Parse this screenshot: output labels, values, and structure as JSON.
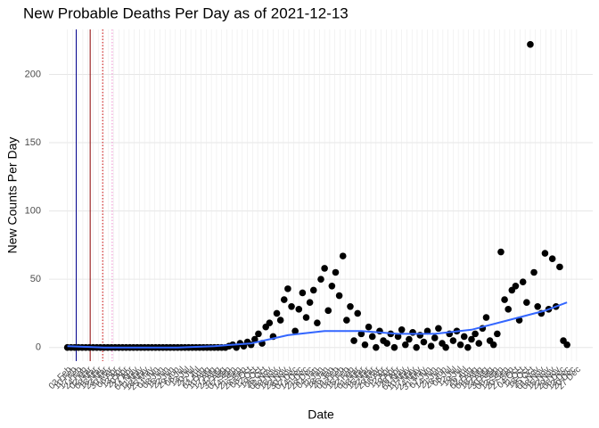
{
  "chart_data": {
    "type": "scatter",
    "title": "New Probable Deaths Per Day as of 2021-12-13",
    "x_label": "Date",
    "y_label": "New Counts Per Day",
    "color": "#000000",
    "x": [
      0,
      5,
      10,
      15,
      20,
      25,
      30,
      35,
      40,
      45,
      50,
      55,
      60,
      65,
      70,
      75,
      80,
      85,
      90,
      95,
      100,
      105,
      110,
      115,
      120,
      125,
      130,
      135,
      140,
      145,
      150,
      155,
      160,
      165,
      170,
      175,
      180,
      185,
      190,
      195,
      200,
      205,
      210,
      215,
      220,
      225,
      230,
      235,
      240,
      245,
      250,
      255,
      260,
      265,
      270,
      275,
      280,
      285,
      290,
      295,
      300,
      305,
      310,
      315,
      320,
      325,
      330,
      335,
      340,
      345,
      350,
      355,
      360,
      365,
      370,
      375,
      380,
      385,
      390,
      395,
      400,
      405,
      410,
      415,
      420,
      425,
      430,
      435,
      440,
      445,
      450,
      455,
      460,
      465,
      470,
      475,
      480,
      485,
      490,
      495,
      500,
      505,
      510,
      515,
      520,
      525,
      530,
      535,
      540,
      545,
      550,
      555,
      560,
      565,
      570,
      575,
      580,
      585,
      590,
      595,
      600,
      605,
      610,
      615,
      620,
      625,
      630,
      635,
      640,
      645,
      650,
      655,
      660,
      665,
      670,
      675,
      680
    ],
    "values": [
      0,
      0,
      0,
      0,
      0,
      0,
      0,
      0,
      0,
      0,
      0,
      0,
      0,
      0,
      0,
      0,
      0,
      0,
      0,
      0,
      0,
      0,
      0,
      0,
      0,
      0,
      0,
      0,
      0,
      0,
      0,
      0,
      0,
      0,
      0,
      0,
      0,
      0,
      0,
      0,
      0,
      0,
      0,
      0,
      1,
      2,
      0,
      3,
      1,
      4,
      2,
      6,
      10,
      3,
      15,
      18,
      8,
      25,
      20,
      35,
      43,
      30,
      12,
      28,
      40,
      22,
      33,
      42,
      18,
      50,
      58,
      27,
      45,
      55,
      38,
      67,
      20,
      30,
      5,
      25,
      10,
      2,
      15,
      8,
      0,
      12,
      5,
      3,
      10,
      0,
      8,
      13,
      2,
      6,
      11,
      0,
      9,
      4,
      12,
      1,
      7,
      14,
      3,
      0,
      10,
      5,
      12,
      2,
      8,
      0,
      6,
      10,
      3,
      14,
      22,
      5,
      2,
      10,
      70,
      35,
      28,
      42,
      45,
      20,
      48,
      33,
      222,
      55,
      30,
      25,
      69,
      28,
      65,
      30,
      59,
      5,
      2
    ],
    "smooth": {
      "color": "#3366ff",
      "x": [
        0,
        50,
        100,
        150,
        200,
        250,
        300,
        350,
        400,
        450,
        500,
        550,
        600,
        650,
        680
      ],
      "values": [
        1,
        0,
        0,
        0,
        1,
        3,
        9,
        12,
        12,
        10,
        10,
        13,
        20,
        27,
        33
      ]
    },
    "vlines": [
      {
        "x": 12,
        "color": "#00008b",
        "style": "solid"
      },
      {
        "x": 31,
        "color": "#8b0000",
        "style": "solid"
      },
      {
        "x": 48,
        "color": "#cc0000",
        "style": "dotted"
      },
      {
        "x": 61,
        "color": "#ee88cc",
        "style": "dotted"
      }
    ],
    "xlim": [
      -25,
      715
    ],
    "ylim": [
      -10,
      233
    ],
    "yticks": [
      0,
      50,
      100,
      150,
      200
    ],
    "grid": true,
    "xticks": [
      {
        "value": 0,
        "label": "03 Feb"
      },
      {
        "value": 7,
        "label": "10 Feb"
      },
      {
        "value": 14,
        "label": "17 Feb"
      },
      {
        "value": 21,
        "label": "24 Feb"
      },
      {
        "value": 28,
        "label": "02 Mar"
      },
      {
        "value": 35,
        "label": "09 Mar"
      },
      {
        "value": 42,
        "label": "16 Mar"
      },
      {
        "value": 49,
        "label": "23 Mar"
      },
      {
        "value": 56,
        "label": "30 Mar"
      },
      {
        "value": 63,
        "label": "06 Apr"
      },
      {
        "value": 70,
        "label": "13 Apr"
      },
      {
        "value": 77,
        "label": "20 Apr"
      },
      {
        "value": 84,
        "label": "27 Apr"
      },
      {
        "value": 91,
        "label": "04 May"
      },
      {
        "value": 98,
        "label": "11 May"
      },
      {
        "value": 105,
        "label": "18 May"
      },
      {
        "value": 112,
        "label": "25 May"
      },
      {
        "value": 119,
        "label": "01 Jun"
      },
      {
        "value": 126,
        "label": "08 Jun"
      },
      {
        "value": 133,
        "label": "15 Jun"
      },
      {
        "value": 140,
        "label": "22 Jun"
      },
      {
        "value": 147,
        "label": "29 Jun"
      },
      {
        "value": 154,
        "label": "06 Jul"
      },
      {
        "value": 161,
        "label": "13 Jul"
      },
      {
        "value": 168,
        "label": "20 Jul"
      },
      {
        "value": 175,
        "label": "27 Jul"
      },
      {
        "value": 182,
        "label": "03 Aug"
      },
      {
        "value": 189,
        "label": "10 Aug"
      },
      {
        "value": 196,
        "label": "17 Aug"
      },
      {
        "value": 203,
        "label": "24 Aug"
      },
      {
        "value": 210,
        "label": "31 Aug"
      },
      {
        "value": 217,
        "label": "07 Sep"
      },
      {
        "value": 224,
        "label": "14 Sep"
      },
      {
        "value": 231,
        "label": "21 Sep"
      },
      {
        "value": 238,
        "label": "28 Sep"
      },
      {
        "value": 245,
        "label": "05 Oct"
      },
      {
        "value": 252,
        "label": "12 Oct"
      },
      {
        "value": 259,
        "label": "19 Oct"
      },
      {
        "value": 266,
        "label": "26 Oct"
      },
      {
        "value": 273,
        "label": "02 Nov"
      },
      {
        "value": 280,
        "label": "09 Nov"
      },
      {
        "value": 287,
        "label": "16 Nov"
      },
      {
        "value": 294,
        "label": "23 Nov"
      },
      {
        "value": 301,
        "label": "30 Nov"
      },
      {
        "value": 308,
        "label": "07 Dec"
      },
      {
        "value": 315,
        "label": "14 Dec"
      },
      {
        "value": 322,
        "label": "21 Dec"
      },
      {
        "value": 329,
        "label": "28 Dec"
      },
      {
        "value": 336,
        "label": "04 Jan"
      },
      {
        "value": 343,
        "label": "11 Jan"
      },
      {
        "value": 350,
        "label": "18 Jan"
      },
      {
        "value": 357,
        "label": "25 Jan"
      },
      {
        "value": 364,
        "label": "01 Feb"
      },
      {
        "value": 371,
        "label": "08 Feb"
      },
      {
        "value": 378,
        "label": "15 Feb"
      },
      {
        "value": 385,
        "label": "22 Feb"
      },
      {
        "value": 392,
        "label": "01 Mar"
      },
      {
        "value": 399,
        "label": "08 Mar"
      },
      {
        "value": 406,
        "label": "15 Mar"
      },
      {
        "value": 413,
        "label": "22 Mar"
      },
      {
        "value": 420,
        "label": "29 Mar"
      },
      {
        "value": 427,
        "label": "05 Apr"
      },
      {
        "value": 434,
        "label": "12 Apr"
      },
      {
        "value": 441,
        "label": "19 Apr"
      },
      {
        "value": 448,
        "label": "26 Apr"
      },
      {
        "value": 455,
        "label": "03 May"
      },
      {
        "value": 462,
        "label": "10 May"
      },
      {
        "value": 469,
        "label": "17 May"
      },
      {
        "value": 476,
        "label": "24 May"
      },
      {
        "value": 483,
        "label": "31 May"
      },
      {
        "value": 490,
        "label": "07 Jun"
      },
      {
        "value": 497,
        "label": "14 Jun"
      },
      {
        "value": 504,
        "label": "21 Jun"
      },
      {
        "value": 511,
        "label": "28 Jun"
      },
      {
        "value": 518,
        "label": "05 Jul"
      },
      {
        "value": 525,
        "label": "12 Jul"
      },
      {
        "value": 532,
        "label": "19 Jul"
      },
      {
        "value": 539,
        "label": "26 Jul"
      },
      {
        "value": 546,
        "label": "02 Aug"
      },
      {
        "value": 553,
        "label": "09 Aug"
      },
      {
        "value": 560,
        "label": "16 Aug"
      },
      {
        "value": 567,
        "label": "23 Aug"
      },
      {
        "value": 574,
        "label": "30 Aug"
      },
      {
        "value": 581,
        "label": "06 Sep"
      },
      {
        "value": 588,
        "label": "13 Sep"
      },
      {
        "value": 595,
        "label": "20 Sep"
      },
      {
        "value": 602,
        "label": "27 Sep"
      },
      {
        "value": 609,
        "label": "04 Oct"
      },
      {
        "value": 616,
        "label": "11 Oct"
      },
      {
        "value": 623,
        "label": "18 Oct"
      },
      {
        "value": 630,
        "label": "25 Oct"
      },
      {
        "value": 637,
        "label": "01 Nov"
      },
      {
        "value": 644,
        "label": "08 Nov"
      },
      {
        "value": 651,
        "label": "15 Nov"
      },
      {
        "value": 658,
        "label": "22 Nov"
      },
      {
        "value": 665,
        "label": "29 Nov"
      },
      {
        "value": 672,
        "label": "06 Dec"
      },
      {
        "value": 679,
        "label": "13 Dec"
      },
      {
        "value": 686,
        "label": "20 Dec"
      },
      {
        "value": 693,
        "label": "27 Dec"
      }
    ]
  }
}
